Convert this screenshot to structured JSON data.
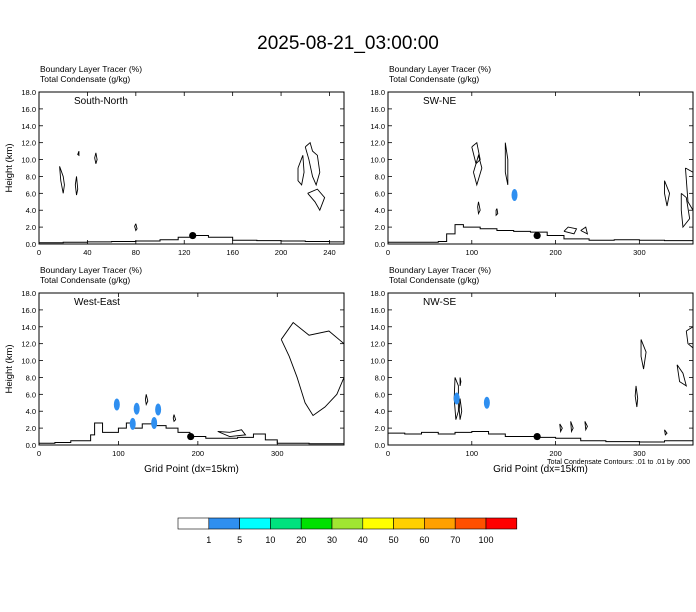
{
  "title": "2025-08-21_03:00:00",
  "colors": {
    "terrain": "#000000",
    "contour": "#000000",
    "tracer_fill": "#2f8ff0",
    "marker": "#000000"
  },
  "chart_data": [
    {
      "type": "area",
      "panel": "South-North",
      "header_line1": "Boundary Layer Tracer    (%)",
      "header_line2": "Total Condensate    (g/kg)",
      "ylabel": "Height (km)",
      "xlabel": "",
      "xlim": [
        0,
        252
      ],
      "ylim": [
        0,
        18
      ],
      "xticks": [
        0,
        40,
        80,
        120,
        160,
        200,
        240
      ],
      "yticks": [
        "0.0",
        "2.0",
        "4.0",
        "6.0",
        "8.0",
        "10.0",
        "12.0",
        "14.0",
        "16.0",
        "18.0"
      ],
      "marker": [
        127,
        1.0
      ],
      "terrain": [
        [
          0,
          0.15
        ],
        [
          20,
          0.2
        ],
        [
          40,
          0.25
        ],
        [
          60,
          0.3
        ],
        [
          80,
          0.35
        ],
        [
          100,
          0.5
        ],
        [
          115,
          0.8
        ],
        [
          125,
          1.0
        ],
        [
          140,
          0.8
        ],
        [
          160,
          0.45
        ],
        [
          180,
          0.4
        ],
        [
          200,
          0.35
        ],
        [
          220,
          0.3
        ],
        [
          240,
          0.25
        ],
        [
          252,
          0.2
        ]
      ],
      "condensate_contours": [
        [
          [
            17,
            9.2
          ],
          [
            20,
            8.0
          ],
          [
            21,
            7.0
          ],
          [
            20,
            6.0
          ],
          [
            18,
            7.5
          ],
          [
            17,
            9.2
          ]
        ],
        [
          [
            31,
            8.0
          ],
          [
            32,
            6.5
          ],
          [
            31,
            5.8
          ],
          [
            30,
            7.0
          ],
          [
            31,
            8.0
          ]
        ],
        [
          [
            47,
            10.8
          ],
          [
            48,
            10.0
          ],
          [
            47,
            9.5
          ],
          [
            46,
            10.2
          ],
          [
            47,
            10.8
          ]
        ],
        [
          [
            33,
            11.0
          ],
          [
            33,
            10.5
          ],
          [
            32,
            10.6
          ],
          [
            33,
            11.0
          ]
        ],
        [
          [
            80,
            2.4
          ],
          [
            81,
            1.8
          ],
          [
            80,
            1.6
          ],
          [
            79,
            2.1
          ],
          [
            80,
            2.4
          ]
        ],
        [
          [
            220,
            11.5
          ],
          [
            223,
            10.0
          ],
          [
            226,
            8.0
          ],
          [
            229,
            7.0
          ],
          [
            232,
            8.5
          ],
          [
            230,
            10.5
          ],
          [
            226,
            11.0
          ],
          [
            224,
            12.0
          ],
          [
            220,
            11.5
          ]
        ],
        [
          [
            214,
            9.0
          ],
          [
            218,
            10.5
          ],
          [
            219,
            8.5
          ],
          [
            217,
            7.0
          ],
          [
            214,
            7.5
          ],
          [
            214,
            9.0
          ]
        ],
        [
          [
            222,
            6.0
          ],
          [
            228,
            5.0
          ],
          [
            232,
            4.0
          ],
          [
            236,
            5.5
          ],
          [
            230,
            6.5
          ],
          [
            222,
            6.0
          ]
        ]
      ],
      "tracer_blobs": []
    },
    {
      "type": "area",
      "panel": "SW-NE",
      "header_line1": "Boundary Layer Tracer    (%)",
      "header_line2": "Total Condensate    (g/kg)",
      "ylabel": "",
      "xlabel": "",
      "xlim": [
        0,
        364
      ],
      "ylim": [
        0,
        18
      ],
      "xticks": [
        0,
        100,
        200,
        300
      ],
      "yticks": [
        "0.0",
        "2.0",
        "4.0",
        "6.0",
        "8.0",
        "10.0",
        "12.0",
        "14.0",
        "16.0",
        "18.0"
      ],
      "marker": [
        178,
        1.0
      ],
      "terrain": [
        [
          0,
          0.2
        ],
        [
          40,
          0.2
        ],
        [
          60,
          0.3
        ],
        [
          70,
          1.2
        ],
        [
          80,
          2.3
        ],
        [
          90,
          2.0
        ],
        [
          110,
          1.8
        ],
        [
          130,
          1.6
        ],
        [
          150,
          1.5
        ],
        [
          170,
          1.4
        ],
        [
          190,
          1.0
        ],
        [
          210,
          0.6
        ],
        [
          240,
          0.45
        ],
        [
          270,
          0.5
        ],
        [
          300,
          0.45
        ],
        [
          330,
          0.4
        ],
        [
          364,
          0.3
        ]
      ],
      "condensate_contours": [
        [
          [
            100,
            11.5
          ],
          [
            105,
            9.5
          ],
          [
            110,
            10.0
          ],
          [
            106,
            12.0
          ],
          [
            100,
            11.5
          ]
        ],
        [
          [
            102,
            8.5
          ],
          [
            108,
            10.5
          ],
          [
            112,
            9.0
          ],
          [
            106,
            7.0
          ],
          [
            102,
            8.5
          ]
        ],
        [
          [
            140,
            12.0
          ],
          [
            143,
            10.0
          ],
          [
            143,
            7.0
          ],
          [
            140,
            8.5
          ],
          [
            140,
            12.0
          ]
        ],
        [
          [
            108,
            5.0
          ],
          [
            110,
            4.0
          ],
          [
            108,
            3.6
          ],
          [
            107,
            4.4
          ],
          [
            108,
            5.0
          ]
        ],
        [
          [
            130,
            4.2
          ],
          [
            131,
            3.6
          ],
          [
            129,
            3.4
          ],
          [
            129,
            4.0
          ],
          [
            130,
            4.2
          ]
        ],
        [
          [
            210,
            1.5
          ],
          [
            222,
            1.2
          ],
          [
            225,
            1.8
          ],
          [
            215,
            2.0
          ],
          [
            210,
            1.5
          ]
        ],
        [
          [
            230,
            1.6
          ],
          [
            238,
            1.2
          ],
          [
            236,
            2.0
          ],
          [
            230,
            1.6
          ]
        ],
        [
          [
            330,
            7.5
          ],
          [
            336,
            6.0
          ],
          [
            333,
            4.5
          ],
          [
            330,
            6.0
          ],
          [
            330,
            7.5
          ]
        ],
        [
          [
            350,
            6.0
          ],
          [
            356,
            5.5
          ],
          [
            360,
            3.0
          ],
          [
            352,
            2.0
          ],
          [
            350,
            4.0
          ],
          [
            350,
            6.0
          ]
        ],
        [
          [
            355,
            9.0
          ],
          [
            364,
            8.5
          ],
          [
            364,
            4.0
          ],
          [
            358,
            5.0
          ],
          [
            355,
            9.0
          ]
        ]
      ],
      "tracer_blobs": [
        [
          151,
          5.8
        ]
      ]
    },
    {
      "type": "area",
      "panel": "West-East",
      "header_line1": "Boundary Layer Tracer    (%)",
      "header_line2": "Total Condensate    (g/kg)",
      "ylabel": "Height (km)",
      "xlabel": "Grid Point  (dx=15km)",
      "xlim": [
        0,
        384
      ],
      "ylim": [
        0,
        18
      ],
      "xticks": [
        0,
        100,
        200,
        300
      ],
      "yticks": [
        "0.0",
        "2.0",
        "4.0",
        "6.0",
        "8.0",
        "10.0",
        "12.0",
        "14.0",
        "16.0",
        "18.0"
      ],
      "marker": [
        191,
        1.0
      ],
      "terrain": [
        [
          0,
          0.2
        ],
        [
          20,
          0.3
        ],
        [
          40,
          0.5
        ],
        [
          55,
          0.5
        ],
        [
          65,
          1.2
        ],
        [
          70,
          2.6
        ],
        [
          80,
          1.5
        ],
        [
          100,
          2.0
        ],
        [
          110,
          2.6
        ],
        [
          120,
          2.0
        ],
        [
          130,
          2.5
        ],
        [
          145,
          2.3
        ],
        [
          160,
          2.0
        ],
        [
          175,
          1.5
        ],
        [
          190,
          1.0
        ],
        [
          210,
          0.8
        ],
        [
          230,
          0.8
        ],
        [
          250,
          0.9
        ],
        [
          270,
          1.3
        ],
        [
          285,
          0.6
        ],
        [
          300,
          0.2
        ],
        [
          340,
          0.15
        ],
        [
          384,
          0.1
        ]
      ],
      "condensate_contours": [
        [
          [
            305,
            12.5
          ],
          [
            320,
            14.5
          ],
          [
            340,
            13.0
          ],
          [
            365,
            13.5
          ],
          [
            384,
            12.0
          ],
          [
            384,
            8.0
          ],
          [
            375,
            6.0
          ],
          [
            360,
            4.5
          ],
          [
            345,
            3.5
          ],
          [
            335,
            5.0
          ],
          [
            325,
            8.0
          ],
          [
            315,
            10.5
          ],
          [
            305,
            12.5
          ]
        ],
        [
          [
            225,
            1.6
          ],
          [
            240,
            1.5
          ],
          [
            255,
            1.8
          ],
          [
            260,
            1.2
          ],
          [
            240,
            1.0
          ],
          [
            225,
            1.6
          ]
        ],
        [
          [
            135,
            6.0
          ],
          [
            137,
            5.2
          ],
          [
            135,
            4.8
          ],
          [
            134,
            5.4
          ],
          [
            135,
            6.0
          ]
        ],
        [
          [
            170,
            3.6
          ],
          [
            172,
            3.0
          ],
          [
            170,
            2.8
          ],
          [
            169,
            3.2
          ],
          [
            170,
            3.6
          ]
        ]
      ],
      "tracer_blobs": [
        [
          98,
          4.8
        ],
        [
          123,
          4.3
        ],
        [
          150,
          4.2
        ],
        [
          118,
          2.5
        ],
        [
          145,
          2.6
        ]
      ]
    },
    {
      "type": "area",
      "panel": "NW-SE",
      "header_line1": "Boundary Layer Tracer    (%)",
      "header_line2": "Total Condensate    (g/kg)",
      "ylabel": "",
      "xlabel": "Grid Point  (dx=15km)",
      "xlim": [
        0,
        364
      ],
      "ylim": [
        0,
        18
      ],
      "xticks": [
        0,
        100,
        200,
        300
      ],
      "yticks": [
        "0.0",
        "2.0",
        "4.0",
        "6.0",
        "8.0",
        "10.0",
        "12.0",
        "14.0",
        "16.0",
        "18.0"
      ],
      "marker": [
        178,
        1.0
      ],
      "terrain": [
        [
          0,
          1.4
        ],
        [
          20,
          1.3
        ],
        [
          40,
          1.5
        ],
        [
          60,
          1.3
        ],
        [
          80,
          1.5
        ],
        [
          100,
          1.6
        ],
        [
          120,
          1.3
        ],
        [
          140,
          1.0
        ],
        [
          160,
          1.0
        ],
        [
          180,
          0.9
        ],
        [
          200,
          0.8
        ],
        [
          230,
          0.5
        ],
        [
          260,
          0.4
        ],
        [
          300,
          0.35
        ],
        [
          330,
          0.5
        ],
        [
          364,
          0.3
        ]
      ],
      "condensate_contours": [
        [
          [
            80,
            8.0
          ],
          [
            84,
            7.0
          ],
          [
            84,
            4.0
          ],
          [
            81,
            3.0
          ],
          [
            79,
            5.5
          ],
          [
            80,
            8.0
          ]
        ],
        [
          [
            86,
            5.5
          ],
          [
            88,
            4.0
          ],
          [
            86,
            3.0
          ],
          [
            85,
            4.2
          ],
          [
            86,
            5.5
          ]
        ],
        [
          [
            86,
            8.0
          ],
          [
            87,
            7.5
          ],
          [
            86,
            7.0
          ],
          [
            86,
            8.0
          ]
        ],
        [
          [
            302,
            12.5
          ],
          [
            308,
            11.0
          ],
          [
            305,
            9.0
          ],
          [
            302,
            10.5
          ],
          [
            302,
            12.5
          ]
        ],
        [
          [
            296,
            7.0
          ],
          [
            298,
            5.5
          ],
          [
            297,
            4.5
          ],
          [
            295,
            5.8
          ],
          [
            296,
            7.0
          ]
        ],
        [
          [
            345,
            9.5
          ],
          [
            352,
            8.5
          ],
          [
            356,
            7.0
          ],
          [
            348,
            7.5
          ],
          [
            345,
            9.5
          ]
        ],
        [
          [
            356,
            13.5
          ],
          [
            364,
            14.0
          ],
          [
            364,
            11.5
          ],
          [
            358,
            12.0
          ],
          [
            356,
            13.5
          ]
        ],
        [
          [
            205,
            2.5
          ],
          [
            208,
            2.0
          ],
          [
            206,
            1.6
          ],
          [
            205,
            2.5
          ]
        ],
        [
          [
            218,
            2.8
          ],
          [
            221,
            2.0
          ],
          [
            219,
            1.6
          ],
          [
            218,
            2.8
          ]
        ],
        [
          [
            235,
            2.8
          ],
          [
            238,
            2.2
          ],
          [
            236,
            1.8
          ],
          [
            235,
            2.8
          ]
        ],
        [
          [
            330,
            1.8
          ],
          [
            333,
            1.4
          ],
          [
            331,
            1.2
          ],
          [
            330,
            1.8
          ]
        ]
      ],
      "tracer_blobs": [
        [
          118,
          5.0
        ],
        [
          82,
          5.5
        ]
      ]
    }
  ],
  "footnote": "Total Condensate Contours: .01 to .01 by .000",
  "colorbar": {
    "labels": [
      "1",
      "5",
      "10",
      "20",
      "30",
      "40",
      "50",
      "60",
      "70",
      "100"
    ],
    "colors": [
      "#ffffff",
      "#2f8ff0",
      "#00ffff",
      "#00e27e",
      "#00e000",
      "#a0e632",
      "#ffff00",
      "#ffd000",
      "#ffa000",
      "#ff5000",
      "#ff0000"
    ]
  }
}
